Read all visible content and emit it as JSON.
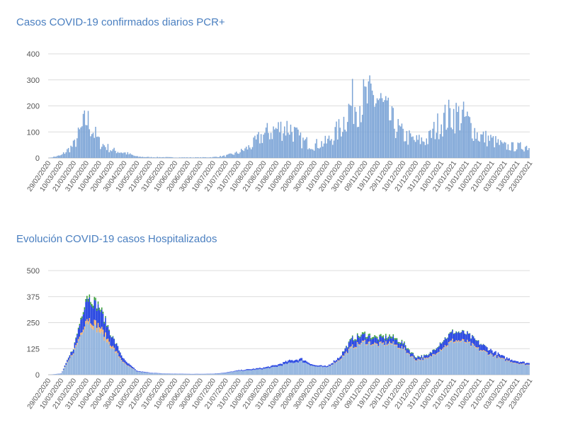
{
  "chart_data": [
    {
      "type": "bar",
      "title": "Casos COVID-19 confirmados diarios PCR+",
      "xlabel": "",
      "ylabel": "",
      "ylim": [
        0,
        400
      ],
      "yticks": [
        "0",
        "100",
        "200",
        "300",
        "400"
      ],
      "grid": true,
      "bar_color": "#7aa3d6",
      "x_ticks": [
        "29/02/2020",
        "10/03/2020",
        "21/03/2020",
        "31/03/2020",
        "10/04/2020",
        "20/04/2020",
        "30/04/2020",
        "10/05/2020",
        "21/05/2020",
        "31/05/2020",
        "10/06/2020",
        "20/06/2020",
        "30/06/2020",
        "10/07/2020",
        "21/07/2020",
        "31/07/2020",
        "10/08/2020",
        "21/08/2020",
        "31/08/2020",
        "10/09/2020",
        "20/09/2020",
        "30/09/2020",
        "10/10/2020",
        "20/10/2020",
        "30/10/2020",
        "09/11/2020",
        "19/11/2020",
        "29/11/2020",
        "10/12/2020",
        "21/12/2020",
        "31/12/2020",
        "10/01/2021",
        "21/01/2021",
        "31/01/2021",
        "10/02/2021",
        "21/02/2021",
        "03/03/2021",
        "13/03/2021",
        "23/03/2021"
      ],
      "series": [
        {
          "values_by_tick": [
            0,
            10,
            50,
            150,
            60,
            30,
            20,
            5,
            3,
            3,
            2,
            2,
            2,
            3,
            8,
            20,
            45,
            90,
            110,
            120,
            65,
            50,
            60,
            110,
            210,
            220,
            230,
            150,
            90,
            65,
            70,
            140,
            170,
            150,
            85,
            70,
            45,
            42,
            45
          ]
        }
      ]
    },
    {
      "type": "bar",
      "title": "Evolución COVID-19 casos  Hospitalizados",
      "xlabel": "",
      "ylabel": "",
      "ylim": [
        0,
        500
      ],
      "yticks": [
        "0",
        "125",
        "250",
        "375",
        "500"
      ],
      "grid": true,
      "stacked": true,
      "x_ticks": [
        "29/02/2020",
        "10/03/2020",
        "21/03/2020",
        "31/03/2020",
        "10/04/2020",
        "20/04/2020",
        "30/04/2020",
        "10/05/2020",
        "21/05/2020",
        "31/05/2020",
        "10/06/2020",
        "20/06/2020",
        "30/06/2020",
        "10/07/2020",
        "21/07/2020",
        "31/07/2020",
        "10/08/2020",
        "21/08/2020",
        "31/08/2020",
        "10/09/2020",
        "20/09/2020",
        "30/09/2020",
        "10/10/2020",
        "20/10/2020",
        "30/10/2020",
        "09/11/2020",
        "19/11/2020",
        "29/11/2020",
        "10/12/2020",
        "21/12/2020",
        "31/12/2020",
        "10/01/2021",
        "21/01/2021",
        "31/01/2021",
        "10/02/2021",
        "21/02/2021",
        "03/03/2021",
        "13/03/2021",
        "23/03/2021"
      ],
      "series": [
        {
          "color": "#8fb2dd",
          "values_by_tick": [
            0,
            5,
            110,
            260,
            210,
            130,
            50,
            15,
            8,
            5,
            4,
            3,
            3,
            4,
            8,
            18,
            22,
            28,
            38,
            55,
            65,
            40,
            35,
            70,
            130,
            155,
            140,
            150,
            125,
            70,
            75,
            120,
            160,
            155,
            120,
            95,
            70,
            55,
            45
          ]
        },
        {
          "color": "#f2b06b",
          "values_by_tick": [
            0,
            0,
            5,
            15,
            25,
            10,
            3,
            0,
            0,
            0,
            0,
            0,
            0,
            0,
            0,
            0,
            0,
            0,
            0,
            0,
            0,
            0,
            0,
            3,
            5,
            5,
            5,
            5,
            4,
            3,
            3,
            4,
            6,
            5,
            4,
            3,
            3,
            2,
            2
          ]
        },
        {
          "color": "#1f3fe0",
          "values_by_tick": [
            0,
            1,
            20,
            100,
            85,
            45,
            15,
            3,
            2,
            1,
            1,
            1,
            1,
            1,
            2,
            3,
            5,
            6,
            8,
            12,
            12,
            6,
            5,
            12,
            35,
            30,
            25,
            25,
            22,
            12,
            12,
            30,
            40,
            38,
            30,
            20,
            12,
            10,
            8
          ]
        },
        {
          "color": "#3aa03a",
          "values_by_tick": [
            0,
            0,
            2,
            15,
            12,
            3,
            0,
            0,
            0,
            0,
            0,
            0,
            0,
            0,
            0,
            0,
            0,
            0,
            0,
            0,
            0,
            0,
            0,
            0,
            5,
            8,
            8,
            8,
            6,
            3,
            2,
            3,
            3,
            2,
            2,
            0,
            0,
            0,
            0
          ]
        }
      ]
    }
  ]
}
